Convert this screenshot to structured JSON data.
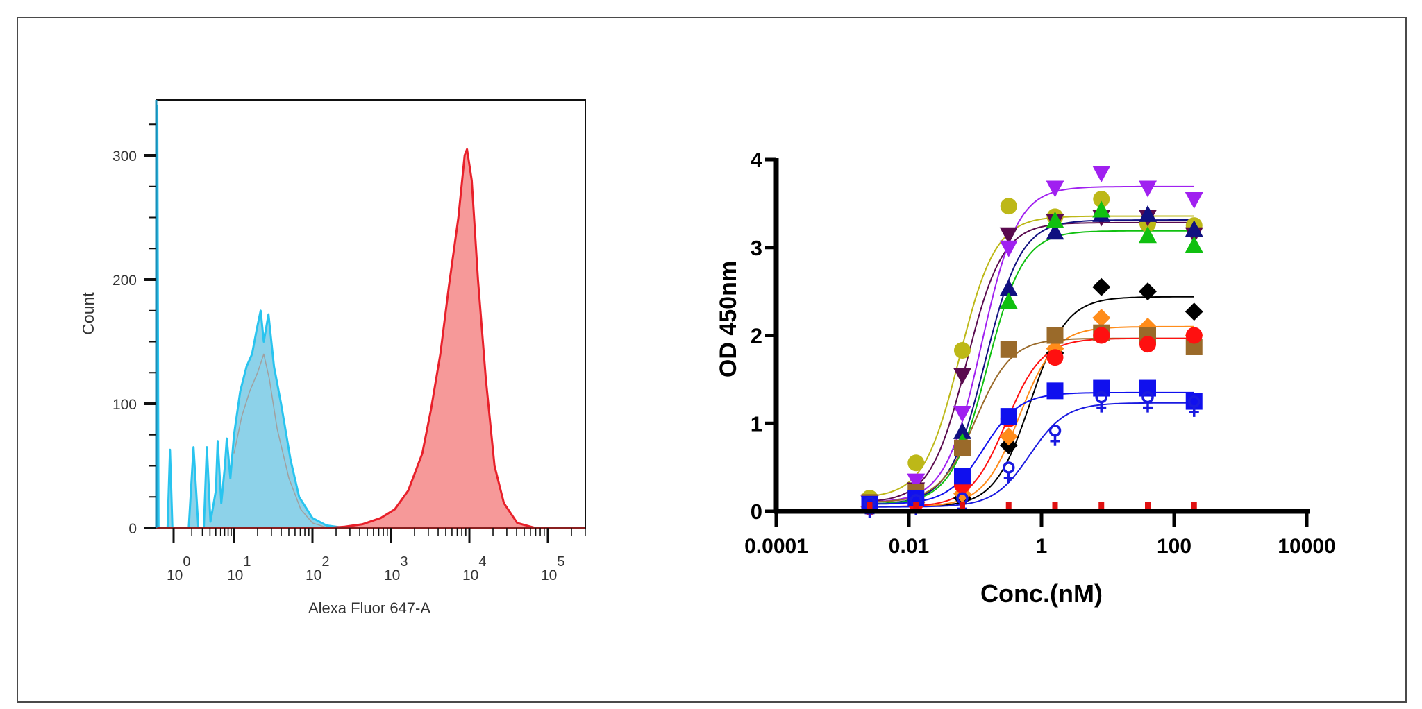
{
  "chart_data": [
    {
      "type": "area",
      "xlabel": "Alexa Fluor 647-A",
      "ylabel": "Count",
      "x_scale": "log (biexponential display)",
      "xticks": [
        {
          "base": "10",
          "exp": "0"
        },
        {
          "base": "10",
          "exp": "1"
        },
        {
          "base": "10",
          "exp": "2"
        },
        {
          "base": "10",
          "exp": "3"
        },
        {
          "base": "10",
          "exp": "4"
        },
        {
          "base": "10",
          "exp": "5"
        }
      ],
      "yticks": [
        "0",
        "100",
        "200",
        "300"
      ],
      "ylim": [
        0,
        350
      ],
      "x_units_note_log10": true,
      "series": [
        {
          "color": "#29c4ef",
          "fill": "#87d0e8",
          "points": [
            [
              -0.28,
              0
            ],
            [
              -0.27,
              340
            ],
            [
              -0.25,
              0
            ],
            [
              -0.1,
              0
            ],
            [
              -0.06,
              63
            ],
            [
              -0.02,
              0
            ],
            [
              0.25,
              0
            ],
            [
              0.33,
              65
            ],
            [
              0.41,
              0
            ],
            [
              0.5,
              0
            ],
            [
              0.55,
              65
            ],
            [
              0.61,
              5
            ],
            [
              0.7,
              30
            ],
            [
              0.73,
              70
            ],
            [
              0.79,
              20
            ],
            [
              0.85,
              50
            ],
            [
              0.88,
              72
            ],
            [
              0.94,
              40
            ],
            [
              1.0,
              75
            ],
            [
              1.08,
              110
            ],
            [
              1.16,
              130
            ],
            [
              1.23,
              140
            ],
            [
              1.29,
              160
            ],
            [
              1.34,
              175
            ],
            [
              1.38,
              150
            ],
            [
              1.44,
              172
            ],
            [
              1.51,
              130
            ],
            [
              1.6,
              100
            ],
            [
              1.72,
              55
            ],
            [
              1.83,
              25
            ],
            [
              2.0,
              8
            ],
            [
              2.18,
              2
            ],
            [
              2.41,
              0
            ]
          ]
        },
        {
          "color": "#a0a0a0",
          "fill": "none",
          "points": [
            [
              1.0,
              60
            ],
            [
              1.1,
              90
            ],
            [
              1.2,
              110
            ],
            [
              1.3,
              125
            ],
            [
              1.38,
              140
            ],
            [
              1.45,
              120
            ],
            [
              1.55,
              80
            ],
            [
              1.7,
              40
            ],
            [
              1.85,
              15
            ],
            [
              2.0,
              4
            ],
            [
              2.2,
              0
            ]
          ]
        },
        {
          "color": "#e8202a",
          "fill": "#f59494",
          "points": [
            [
              2.2,
              0
            ],
            [
              2.41,
              1
            ],
            [
              2.64,
              3
            ],
            [
              2.87,
              8
            ],
            [
              3.05,
              15
            ],
            [
              3.22,
              30
            ],
            [
              3.4,
              60
            ],
            [
              3.51,
              95
            ],
            [
              3.63,
              140
            ],
            [
              3.74,
              195
            ],
            [
              3.86,
              250
            ],
            [
              3.94,
              300
            ],
            [
              3.97,
              305
            ],
            [
              4.03,
              280
            ],
            [
              4.11,
              200
            ],
            [
              4.21,
              120
            ],
            [
              4.32,
              50
            ],
            [
              4.44,
              20
            ],
            [
              4.61,
              4
            ],
            [
              4.84,
              0
            ],
            [
              5.45,
              0
            ]
          ]
        }
      ]
    },
    {
      "type": "scatter",
      "xlabel": "Conc.(nM)",
      "ylabel": "OD 450nm",
      "x_scale": "log",
      "xlim": [
        0.0001,
        10000
      ],
      "ylim": [
        0,
        4
      ],
      "xticks": [
        "0.0001",
        "0.01",
        "1",
        "100",
        "10000"
      ],
      "yticks": [
        "0",
        "1",
        "2",
        "3",
        "4"
      ],
      "grid": false,
      "fit": "sigmoidal dose-response curve per series",
      "x": [
        0.00256,
        0.0128,
        0.064,
        0.32,
        1.6,
        8,
        40,
        200
      ],
      "series": [
        {
          "marker": "circle",
          "color": "#bdb818",
          "values": [
            0.15,
            0.55,
            1.83,
            3.47,
            3.35,
            3.55,
            3.27,
            3.25
          ]
        },
        {
          "marker": "triangle-down",
          "color": "#5a0a4e",
          "values": [
            0.1,
            0.25,
            1.55,
            3.15,
            3.3,
            3.35,
            3.35,
            3.15
          ]
        },
        {
          "marker": "triangle-down",
          "color": "#a020f0",
          "values": [
            0.1,
            0.35,
            1.12,
            3.0,
            3.68,
            3.85,
            3.68,
            3.55
          ]
        },
        {
          "marker": "triangle-up",
          "color": "#101080",
          "values": [
            0.08,
            0.2,
            0.9,
            2.53,
            3.17,
            3.37,
            3.37,
            3.2
          ]
        },
        {
          "marker": "triangle-up",
          "color": "#10c010",
          "values": [
            0.08,
            0.18,
            0.78,
            2.38,
            3.3,
            3.42,
            3.13,
            3.02
          ]
        },
        {
          "marker": "diamond",
          "color": "#000000",
          "values": [
            0.05,
            0.1,
            0.15,
            0.75,
            1.8,
            2.55,
            2.5,
            2.27
          ]
        },
        {
          "marker": "diamond",
          "color": "#ff8c1a",
          "values": [
            0.05,
            0.1,
            0.2,
            0.85,
            1.85,
            2.2,
            2.1,
            2.0
          ]
        },
        {
          "marker": "square",
          "color": "#9a6a2a",
          "values": [
            0.1,
            0.22,
            0.72,
            1.84,
            2.0,
            2.03,
            2.0,
            1.87
          ]
        },
        {
          "marker": "circle",
          "color": "#ff1010",
          "values": [
            0.05,
            0.1,
            0.3,
            1.05,
            1.75,
            2.0,
            1.9,
            2.0
          ]
        },
        {
          "marker": "square",
          "color": "#1010ee",
          "values": [
            0.08,
            0.15,
            0.4,
            1.08,
            1.37,
            1.4,
            1.4,
            1.25
          ]
        },
        {
          "marker": "female-open",
          "color": "#1a1ae0",
          "values": [
            0.05,
            0.08,
            0.1,
            0.45,
            0.87,
            1.25,
            1.25,
            1.2
          ]
        },
        {
          "marker": "bar",
          "color": "#e01010",
          "values": [
            0.05,
            0.05,
            0.05,
            0.05,
            0.05,
            0.05,
            0.05,
            0.05
          ]
        }
      ]
    }
  ]
}
